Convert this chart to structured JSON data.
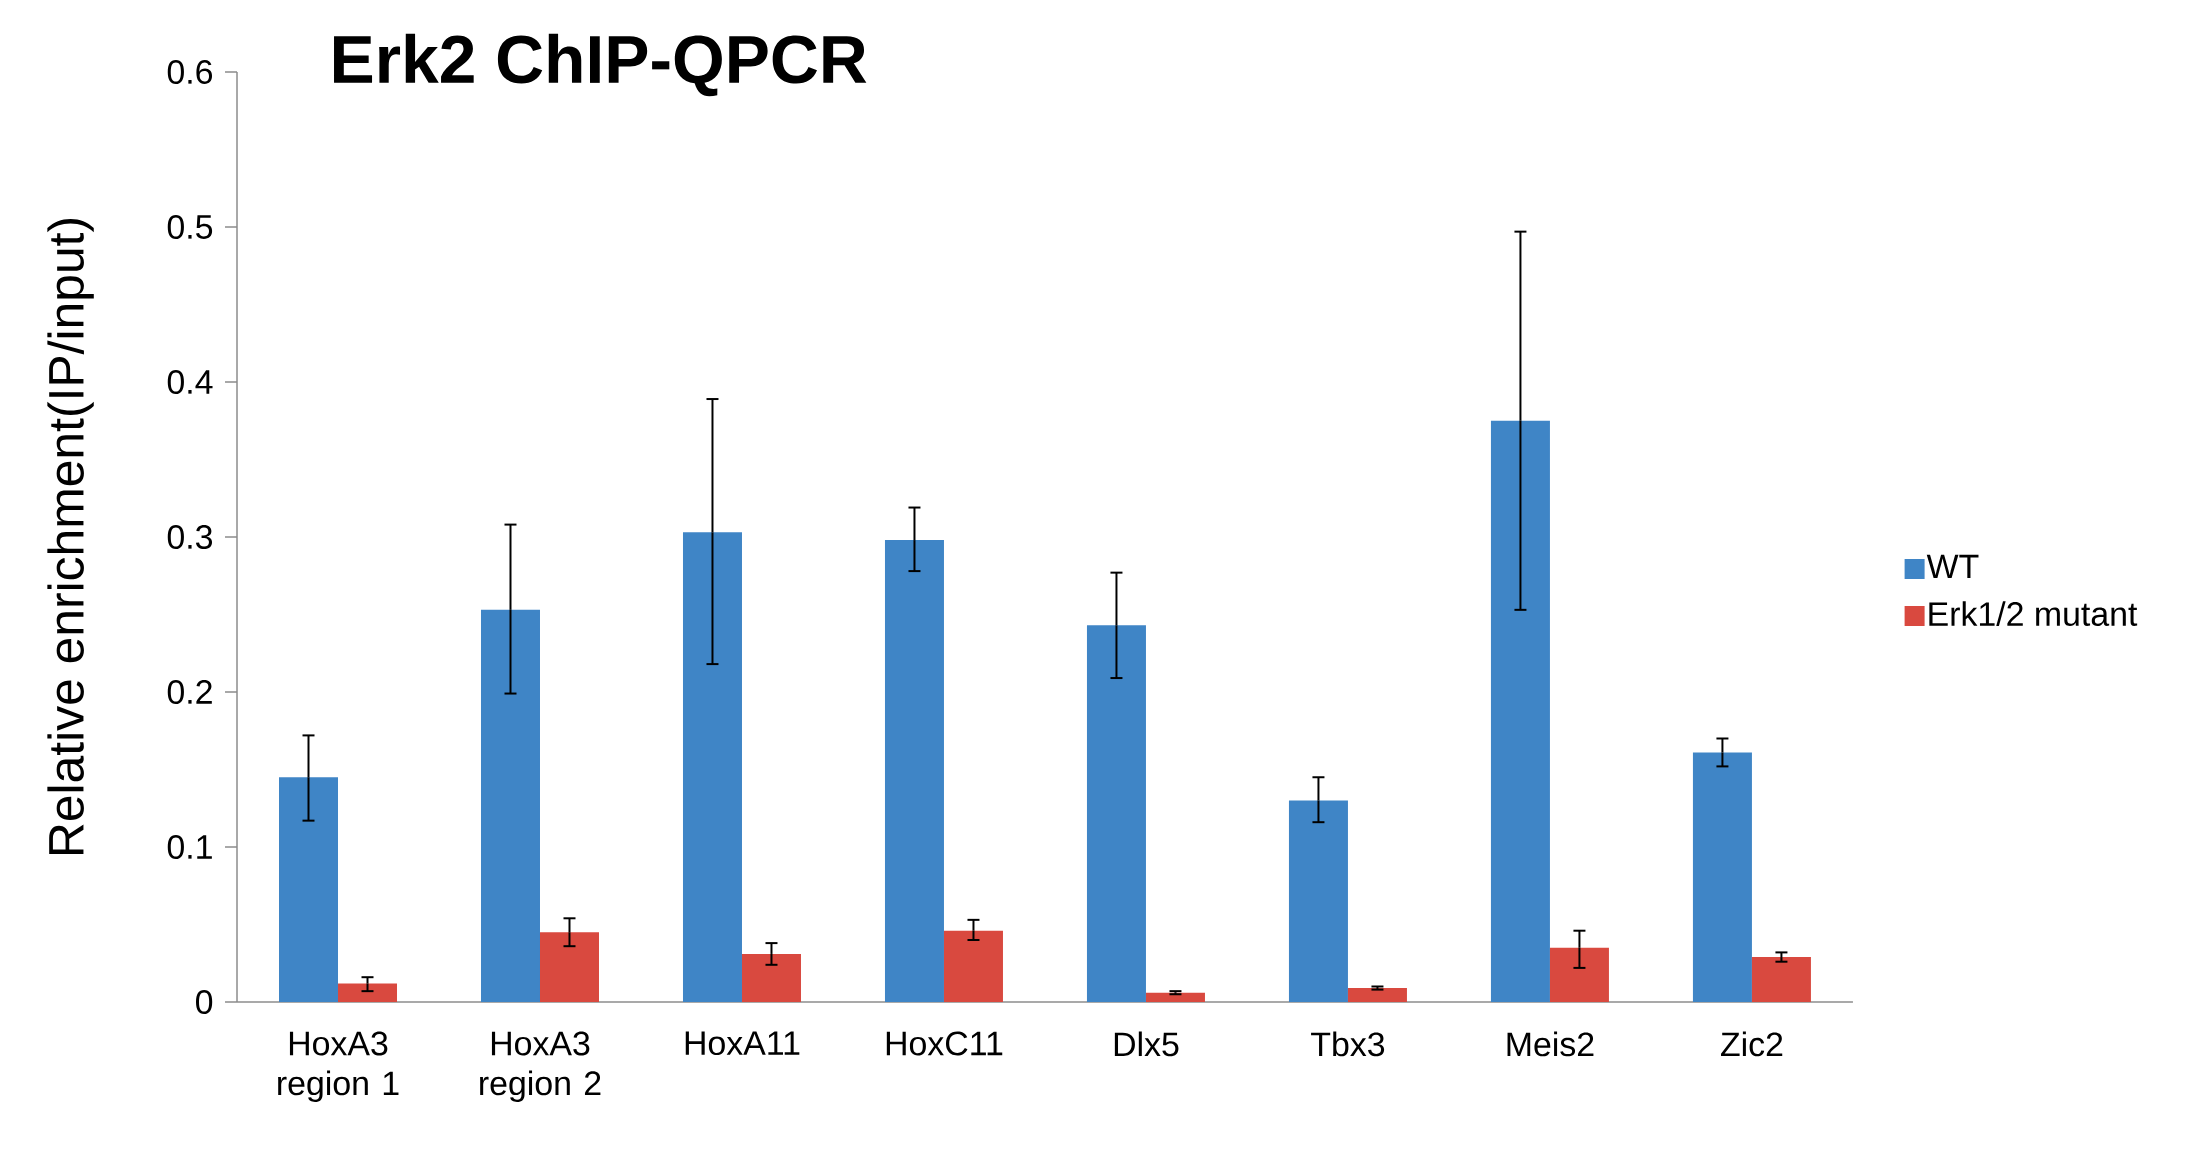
{
  "chart_data": {
    "type": "bar",
    "title": "Erk2 ChIP-QPCR",
    "ylabel": "Relative enrichment(IP/input)",
    "categories": [
      "HoxA3 region 1",
      "HoxA3 region 2",
      "HoxA11",
      "HoxC11",
      "Dlx5",
      "Tbx3",
      "Meis2",
      "Zic2"
    ],
    "series": [
      {
        "name": "WT",
        "color": "#3f85c6",
        "values": [
          0.145,
          0.253,
          0.303,
          0.298,
          0.243,
          0.13,
          0.375,
          0.161
        ],
        "errors": [
          [
            0.117,
            0.172
          ],
          [
            0.199,
            0.308
          ],
          [
            0.218,
            0.389
          ],
          [
            0.278,
            0.319
          ],
          [
            0.209,
            0.277
          ],
          [
            0.116,
            0.145
          ],
          [
            0.253,
            0.497
          ],
          [
            0.152,
            0.17
          ]
        ]
      },
      {
        "name": "Erk1/2 mutant",
        "color": "#d9493f",
        "values": [
          0.012,
          0.045,
          0.031,
          0.046,
          0.006,
          0.009,
          0.035,
          0.029
        ],
        "errors": [
          [
            0.007,
            0.016
          ],
          [
            0.036,
            0.054
          ],
          [
            0.024,
            0.038
          ],
          [
            0.04,
            0.053
          ],
          [
            0.005,
            0.007
          ],
          [
            0.008,
            0.01
          ],
          [
            0.022,
            0.046
          ],
          [
            0.026,
            0.032
          ]
        ]
      }
    ],
    "ylim": [
      0,
      0.6
    ],
    "yticks": [
      0,
      0.1,
      0.2,
      0.3,
      0.4,
      0.5,
      0.6
    ],
    "grid": false,
    "legend": "right"
  }
}
